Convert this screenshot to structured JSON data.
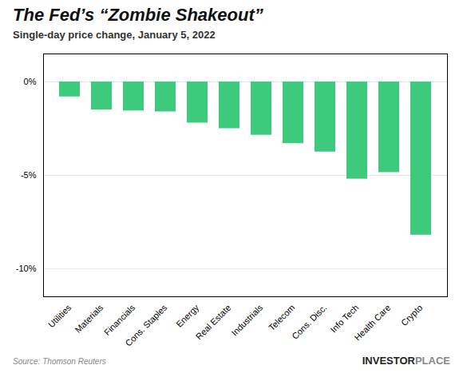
{
  "chart_data": {
    "type": "bar",
    "title": "The Fed’s “Zombie Shakeout”",
    "subtitle": "Single-day price change, January 5, 2022",
    "categories": [
      "Utilities",
      "Materials",
      "Financials",
      "Cons. Staples",
      "Energy",
      "Real Estate",
      "Industrials",
      "Telecom",
      "Cons. Disc.",
      "Info Tech",
      "Health Care",
      "Crypto"
    ],
    "values": [
      -0.8,
      -1.5,
      -1.55,
      -1.6,
      -2.2,
      -2.5,
      -2.85,
      -3.3,
      -3.75,
      -5.2,
      -4.85,
      -8.2
    ],
    "color": "#3dca7d",
    "ylim": [
      -11.5,
      1.5
    ],
    "yticks": [
      {
        "value": 0,
        "label": "0%"
      },
      {
        "value": -5,
        "label": "-5%"
      },
      {
        "value": -10,
        "label": "-10%"
      }
    ],
    "grid": true,
    "source": "Source: Thomson Reuters",
    "annotations": [
      {
        "text": "INVESTOR",
        "color": "#222222"
      },
      {
        "text": "PLACE",
        "color": "#888888"
      }
    ]
  }
}
